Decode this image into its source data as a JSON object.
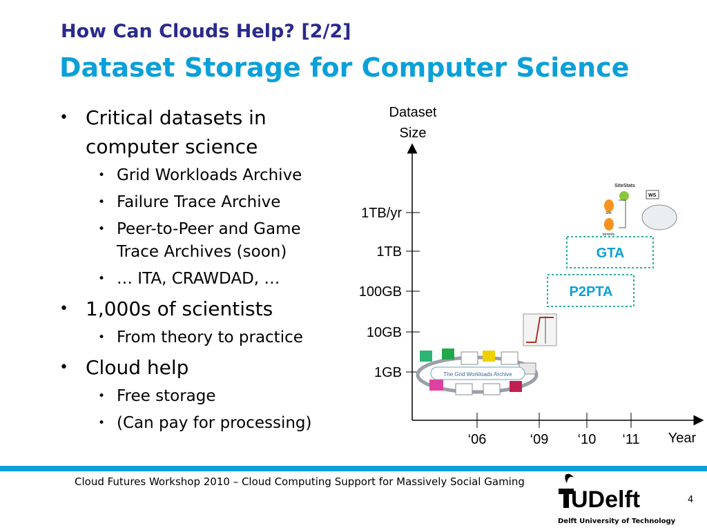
{
  "slide": {
    "title_top": "How Can Clouds Help? [2/2]",
    "title_main": "Dataset Storage for Computer Science",
    "bullets": {
      "b1": "Critical datasets in computer science",
      "b1_subs": [
        "Grid Workloads Archive",
        "Failure Trace Archive",
        "Peer-to-Peer and Game Trace Archives (soon)",
        "… ITA, CRAWDAD, …"
      ],
      "b2": "1,000s of scientists",
      "b2_subs": [
        "From theory to practice"
      ],
      "b3": "Cloud help",
      "b3_subs": [
        "Free storage",
        "(Can pay for processing)"
      ]
    },
    "footer": "Cloud Futures Workshop 2010 – Cloud Computing Support for Massively Social Gaming",
    "logo_text": "TUDelft",
    "logo_subtitle": "Delft University of Technology",
    "page_number": "4"
  },
  "chart_data": {
    "type": "scatter",
    "ylabel": "Dataset Size",
    "xlabel": "Year",
    "y_ticks": [
      "1GB",
      "10GB",
      "100GB",
      "1TB",
      "1TB/yr"
    ],
    "x_ticks": [
      "‘06",
      "‘09",
      "‘10",
      "‘11"
    ],
    "points": [
      {
        "label": "",
        "x": "‘06",
        "y": "1GB"
      },
      {
        "label": "",
        "x": "‘09",
        "y": "10GB"
      },
      {
        "label": "P2PTA",
        "x": "‘10",
        "y": "100GB"
      },
      {
        "label": "GTA",
        "x": "‘11",
        "y": "1TB"
      },
      {
        "label": "",
        "x": "‘11",
        "y": "1TB/yr"
      }
    ],
    "colors": {
      "accent": "#0ba0d8",
      "box_text": "#0ba0d8",
      "axis": "#000000"
    }
  },
  "images": {
    "gwa_title": "The Grid Workloads Archive",
    "sitestats_title": "SiteStats",
    "ws_label": "WS",
    "site_label": "Site",
    "torrents_label": "torrents"
  }
}
